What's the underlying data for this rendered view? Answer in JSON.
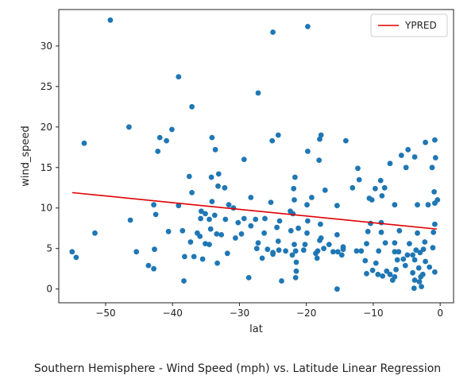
{
  "caption": "Southern Hemisphere - Wind Speed (mph) vs. Latitude Linear Regression",
  "chart_data": {
    "type": "scatter",
    "xlabel": "lat",
    "ylabel": "wind_speed",
    "xlim": [
      -57,
      2
    ],
    "ylim": [
      -1.7,
      34.5
    ],
    "xticks": [
      -50,
      -40,
      -30,
      -20,
      -10,
      0
    ],
    "xtick_labels": [
      "−50",
      "−40",
      "−30",
      "−20",
      "−10",
      "0"
    ],
    "yticks": [
      0,
      5,
      10,
      15,
      20,
      25,
      30
    ],
    "ytick_labels": [
      "0",
      "5",
      "10",
      "15",
      "20",
      "25",
      "30"
    ],
    "grid": false,
    "legend": {
      "position": "top-right",
      "entries": [
        "YPRED"
      ]
    },
    "colors": {
      "points": "#1f77b4",
      "regression": "#e00000"
    },
    "regression_line": {
      "name": "YPRED",
      "x": [
        -55.0,
        -0.5
      ],
      "y": [
        11.9,
        7.4
      ]
    },
    "points": [
      [
        -49.3,
        33.2
      ],
      [
        -25.0,
        31.7
      ],
      [
        -19.8,
        32.4
      ],
      [
        -39.1,
        26.2
      ],
      [
        -27.2,
        24.2
      ],
      [
        -37.1,
        22.5
      ],
      [
        -46.5,
        20.0
      ],
      [
        -40.1,
        19.7
      ],
      [
        -53.2,
        18.0
      ],
      [
        -41.9,
        18.7
      ],
      [
        -40.9,
        18.3
      ],
      [
        -34.1,
        18.7
      ],
      [
        -24.2,
        19.0
      ],
      [
        -25.1,
        18.3
      ],
      [
        -17.8,
        19.0
      ],
      [
        -18.0,
        18.5
      ],
      [
        -14.1,
        18.3
      ],
      [
        -33.6,
        17.2
      ],
      [
        -42.2,
        17.0
      ],
      [
        -19.8,
        17.0
      ],
      [
        -5.8,
        16.5
      ],
      [
        -4.8,
        17.2
      ],
      [
        -3.8,
        16.3
      ],
      [
        -2.2,
        18.1
      ],
      [
        -0.8,
        18.4
      ],
      [
        -0.7,
        16.2
      ],
      [
        -29.3,
        16.0
      ],
      [
        -18.1,
        15.9
      ],
      [
        -12.3,
        14.9
      ],
      [
        -7.5,
        15.5
      ],
      [
        -5.1,
        15.0
      ],
      [
        -1.2,
        15.0
      ],
      [
        -37.5,
        13.9
      ],
      [
        -33.1,
        14.2
      ],
      [
        -34.2,
        13.8
      ],
      [
        -21.7,
        13.8
      ],
      [
        -12.1,
        13.5
      ],
      [
        -8.9,
        13.4
      ],
      [
        -33.2,
        12.7
      ],
      [
        -32.2,
        12.5
      ],
      [
        -21.9,
        12.4
      ],
      [
        -17.2,
        12.2
      ],
      [
        -13.1,
        12.5
      ],
      [
        -9.7,
        12.4
      ],
      [
        -8.3,
        12.5
      ],
      [
        -0.9,
        12.0
      ],
      [
        -37.1,
        11.9
      ],
      [
        -34.1,
        10.8
      ],
      [
        -28.3,
        11.3
      ],
      [
        -21.8,
        11.0
      ],
      [
        -19.2,
        11.3
      ],
      [
        -10.6,
        11.2
      ],
      [
        -10.2,
        11.0
      ],
      [
        -8.7,
        11.5
      ],
      [
        -0.8,
        10.6
      ],
      [
        -0.4,
        11.0
      ],
      [
        -39.1,
        10.3
      ],
      [
        -30.9,
        10.0
      ],
      [
        -25.3,
        10.7
      ],
      [
        -19.9,
        10.4
      ],
      [
        -15.4,
        10.3
      ],
      [
        -6.8,
        10.4
      ],
      [
        -3.4,
        10.4
      ],
      [
        -1.8,
        10.4
      ],
      [
        -35.7,
        9.6
      ],
      [
        -35.1,
        9.3
      ],
      [
        -31.6,
        10.4
      ],
      [
        -33.7,
        9.1
      ],
      [
        -35.8,
        8.7
      ],
      [
        -34.5,
        8.6
      ],
      [
        -32.1,
        8.6
      ],
      [
        -30.2,
        8.2
      ],
      [
        -29.3,
        8.7
      ],
      [
        -27.6,
        8.6
      ],
      [
        -26.2,
        8.7
      ],
      [
        -24.0,
        8.4
      ],
      [
        -22.4,
        9.6
      ],
      [
        -22.0,
        9.3
      ],
      [
        -19.8,
        8.4
      ],
      [
        -17.9,
        8.0
      ],
      [
        -10.4,
        8.1
      ],
      [
        -8.8,
        8.2
      ],
      [
        -0.8,
        8.0
      ],
      [
        -42.5,
        9.2
      ],
      [
        -46.3,
        8.5
      ],
      [
        -42.8,
        10.4
      ],
      [
        -38.5,
        7.2
      ],
      [
        -34.3,
        7.4
      ],
      [
        -36.3,
        6.9
      ],
      [
        -35.9,
        6.5
      ],
      [
        -33.4,
        6.8
      ],
      [
        -32.7,
        6.7
      ],
      [
        -30.6,
        6.3
      ],
      [
        -28.3,
        7.8
      ],
      [
        -26.3,
        6.9
      ],
      [
        -24.4,
        7.6
      ],
      [
        -22.3,
        7.2
      ],
      [
        -21.2,
        7.5
      ],
      [
        -19.9,
        6.9
      ],
      [
        -17.8,
        6.3
      ],
      [
        -15.4,
        6.7
      ],
      [
        -10.8,
        7.1
      ],
      [
        -8.8,
        7.0
      ],
      [
        -6.1,
        7.2
      ],
      [
        -3.4,
        6.9
      ],
      [
        -1.0,
        7.0
      ],
      [
        -51.6,
        6.9
      ],
      [
        -40.6,
        7.1
      ],
      [
        -29.7,
        6.8
      ],
      [
        -27.2,
        5.7
      ],
      [
        -24.2,
        5.9
      ],
      [
        -21.8,
        5.5
      ],
      [
        -20.2,
        5.5
      ],
      [
        -18.0,
        6.0
      ],
      [
        -16.6,
        5.5
      ],
      [
        -14.5,
        5.2
      ],
      [
        -11.0,
        5.6
      ],
      [
        -8.2,
        5.7
      ],
      [
        -6.8,
        5.7
      ],
      [
        -4.6,
        5.6
      ],
      [
        -2.3,
        5.8
      ],
      [
        -1.1,
        5.1
      ],
      [
        -37.3,
        5.8
      ],
      [
        -35.1,
        5.6
      ],
      [
        -34.5,
        5.5
      ],
      [
        -27.4,
        5.0
      ],
      [
        -25.8,
        4.9
      ],
      [
        -24.1,
        4.8
      ],
      [
        -23.1,
        4.7
      ],
      [
        -21.6,
        4.7
      ],
      [
        -20.4,
        4.8
      ],
      [
        -18.3,
        4.7
      ],
      [
        -17.4,
        5.0
      ],
      [
        -15.3,
        4.6
      ],
      [
        -14.5,
        4.9
      ],
      [
        -11.8,
        4.7
      ],
      [
        -9.2,
        4.7
      ],
      [
        -6.2,
        4.6
      ],
      [
        -4.1,
        4.2
      ],
      [
        -3.0,
        4.5
      ],
      [
        -2.5,
        4.9
      ],
      [
        -55.0,
        4.6
      ],
      [
        -54.4,
        3.9
      ],
      [
        -45.4,
        4.6
      ],
      [
        -42.7,
        4.9
      ],
      [
        -38.2,
        4.0
      ],
      [
        -36.8,
        4.0
      ],
      [
        -31.8,
        4.4
      ],
      [
        -25.0,
        4.3
      ],
      [
        -22.1,
        4.2
      ],
      [
        -18.6,
        4.4
      ],
      [
        -16.0,
        4.6
      ],
      [
        -14.7,
        4.2
      ],
      [
        -12.5,
        4.7
      ],
      [
        -6.8,
        4.6
      ],
      [
        -4.9,
        4.2
      ],
      [
        -3.6,
        4.8
      ],
      [
        -43.6,
        2.9
      ],
      [
        -42.8,
        2.5
      ],
      [
        -35.5,
        3.7
      ],
      [
        -33.3,
        3.2
      ],
      [
        -26.6,
        3.8
      ],
      [
        -25.0,
        4.5
      ],
      [
        -21.5,
        3.3
      ],
      [
        -18.4,
        3.8
      ],
      [
        -11.2,
        3.5
      ],
      [
        -9.6,
        3.2
      ],
      [
        -6.4,
        3.6
      ],
      [
        -5.5,
        3.7
      ],
      [
        -3.8,
        3.6
      ],
      [
        -2.2,
        3.4
      ],
      [
        -38.3,
        1.0
      ],
      [
        -28.6,
        1.4
      ],
      [
        -23.7,
        1.0
      ],
      [
        -21.5,
        2.2
      ],
      [
        -21.6,
        1.4
      ],
      [
        -15.4,
        0.0
      ],
      [
        -10.1,
        2.3
      ],
      [
        -9.3,
        1.8
      ],
      [
        -8.0,
        2.2
      ],
      [
        -7.5,
        1.8
      ],
      [
        -6.6,
        2.4
      ],
      [
        -6.8,
        1.5
      ],
      [
        -5.2,
        2.9
      ],
      [
        -4.1,
        2.0
      ],
      [
        -3.2,
        2.6
      ],
      [
        -2.9,
        1.5
      ],
      [
        -2.6,
        1.8
      ],
      [
        -1.6,
        2.7
      ],
      [
        -0.8,
        2.1
      ],
      [
        -7.1,
        1.1
      ],
      [
        -3.8,
        1.1
      ],
      [
        -3.1,
        0.9
      ],
      [
        -2.8,
        0.3
      ],
      [
        -3.9,
        0.1
      ],
      [
        -11.0,
        1.9
      ],
      [
        -8.6,
        1.6
      ]
    ]
  }
}
